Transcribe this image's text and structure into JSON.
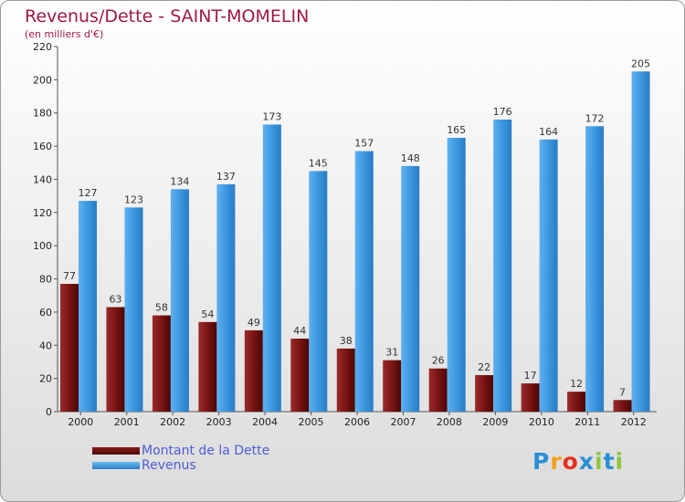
{
  "title": "Revenus/Dette - SAINT-MOMELIN",
  "subtitle": "(en milliers d'€)",
  "legend": {
    "dette_label": "Montant de la Dette",
    "revenus_label": "Revenus"
  },
  "logo": {
    "letters": [
      "P",
      "r",
      "o",
      "x",
      "i",
      "t",
      "i"
    ],
    "colors": [
      "#2a8fd6",
      "#f29f1c",
      "#e3321e",
      "#2a8fd6",
      "#8dc63f",
      "#2a8fd6",
      "#8dc63f"
    ]
  },
  "chart_data": {
    "type": "bar",
    "categories": [
      "2000",
      "2001",
      "2002",
      "2003",
      "2004",
      "2005",
      "2006",
      "2007",
      "2008",
      "2009",
      "2010",
      "2011",
      "2012"
    ],
    "series": [
      {
        "name": "Montant de la Dette",
        "color": "#6d0f10",
        "values": [
          77,
          63,
          58,
          54,
          49,
          44,
          38,
          31,
          26,
          22,
          17,
          12,
          7
        ]
      },
      {
        "name": "Revenus",
        "color": "#3c97e0",
        "values": [
          127,
          123,
          134,
          137,
          173,
          145,
          157,
          148,
          165,
          176,
          164,
          172,
          205
        ]
      }
    ],
    "ylim": [
      0,
      220
    ],
    "yticks": [
      0,
      20,
      40,
      60,
      80,
      100,
      120,
      140,
      160,
      180,
      200,
      220
    ],
    "grid": false
  }
}
